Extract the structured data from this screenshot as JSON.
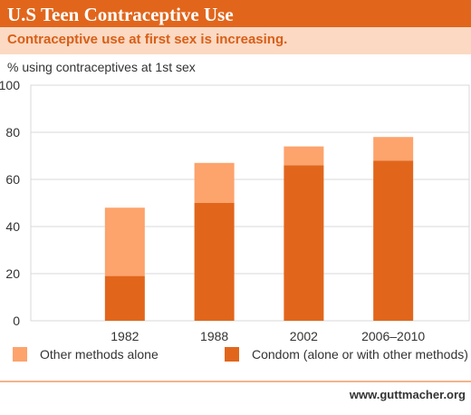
{
  "header": {
    "title": "U.S Teen Contraceptive Use"
  },
  "subheader": {
    "text": "Contraceptive use at first sex is increasing."
  },
  "footer": {
    "url": "www.guttmacher.org"
  },
  "colors": {
    "brand_orange": "#e1661c",
    "light_orange": "#fda36c",
    "sub_band": "#fbd9c3",
    "grid": "#d9d9d9"
  },
  "chart_data": {
    "type": "bar",
    "stacked": true,
    "ylabel": "% using contraceptives at 1st sex",
    "ylim": [
      0,
      100
    ],
    "yticks": [
      0,
      20,
      40,
      60,
      80,
      100
    ],
    "grid": true,
    "legend_position": "bottom",
    "categories": [
      "1982",
      "1988",
      "2002",
      "2006–2010"
    ],
    "series": [
      {
        "name": "Condom (alone or with other methods)",
        "color": "#e1661c",
        "values": [
          19,
          50,
          66,
          68
        ]
      },
      {
        "name": "Other methods alone",
        "color": "#fda36c",
        "values": [
          29,
          17,
          8,
          10
        ]
      }
    ],
    "legend_order": [
      1,
      0
    ]
  }
}
